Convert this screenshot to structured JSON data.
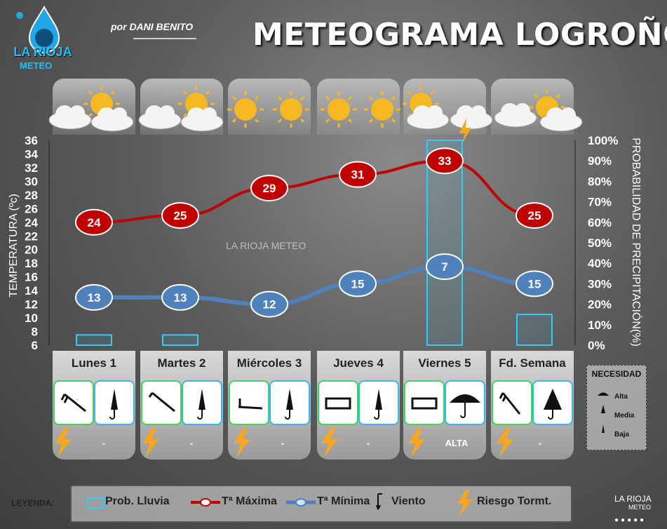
{
  "header": {
    "title": "METEOGRAMA LOGROÑO",
    "byline": "por DANI BENITO",
    "logo_text": "LA RIOJA",
    "logo_sub": "METEO",
    "watermark": "LA RIOJA METEO"
  },
  "chart_data": {
    "type": "line",
    "categories": [
      "Lunes 1",
      "Martes 2",
      "Miércoles 3",
      "Jueves 4",
      "Viernes 5",
      "Fd. Semana"
    ],
    "ylabel": "TEMPERATURA (ºc)",
    "y2label": "PROBABILIDAD DE PRECIPITACIÓN(%)",
    "ylim": [
      6,
      36
    ],
    "y_ticks": [
      "36",
      "34",
      "32",
      "30",
      "28",
      "26",
      "24",
      "22",
      "20",
      "18",
      "16",
      "14",
      "12",
      "10",
      "8",
      "6"
    ],
    "y2lim": [
      0,
      100
    ],
    "y2_ticks": [
      "100%",
      "90%",
      "80%",
      "70%",
      "60%",
      "50%",
      "40%",
      "30%",
      "20%",
      "10%",
      "0%"
    ],
    "series": [
      {
        "name": "Tª Máxima",
        "color": "#c00000",
        "values": [
          24,
          25,
          29,
          31,
          33,
          25
        ]
      },
      {
        "name": "Tª Mínima",
        "color": "#4f81bd",
        "values": [
          13,
          13,
          12,
          15,
          7,
          15
        ]
      },
      {
        "name": "Prob. Lluvia",
        "color": "#3cc8f0",
        "values": [
          5,
          5,
          0,
          0,
          100,
          15
        ]
      }
    ],
    "min_labels": [
      "13",
      "13",
      "12",
      "15",
      "7",
      "15"
    ],
    "max_labels": [
      "24",
      "25",
      "29",
      "31",
      "33",
      "25"
    ]
  },
  "days": [
    {
      "name": "Lunes 1",
      "wind_icon": "wind-nw-arrow-icon",
      "umbrella_icon": "closed-umbrella-icon",
      "storm": "-"
    },
    {
      "name": "Martes 2",
      "wind_icon": "wind-nw-arrow-icon",
      "umbrella_icon": "closed-umbrella-icon",
      "storm": "-"
    },
    {
      "name": "Miércoles 3",
      "wind_icon": "wind-w-arrow-icon",
      "umbrella_icon": "closed-umbrella-icon",
      "storm": "-"
    },
    {
      "name": "Jueves 4",
      "wind_icon": "wind-variable-arrow-icon",
      "umbrella_icon": "closed-umbrella-icon",
      "storm": "-"
    },
    {
      "name": "Viernes 5",
      "wind_icon": "wind-variable-arrow-icon",
      "umbrella_icon": "open-umbrella-icon",
      "storm": "ALTA"
    },
    {
      "name": "Fd. Semana",
      "wind_icon": "wind-nw-arrow-icon",
      "umbrella_icon": "half-open-umbrella-icon",
      "storm": "-"
    }
  ],
  "necesidad": {
    "title": "NECESIDAD",
    "items": [
      "Alta",
      "Media",
      "Baja"
    ]
  },
  "legend": {
    "title": "LEYENDA:",
    "rain": "Prob. Lluvia",
    "max": "Tª Máxima",
    "min": "Tª Mínima",
    "wind": "Viento",
    "storm": "Riesgo Tormt."
  },
  "footer_logo": {
    "text": "LA RIOJA",
    "sub": "METEO"
  }
}
